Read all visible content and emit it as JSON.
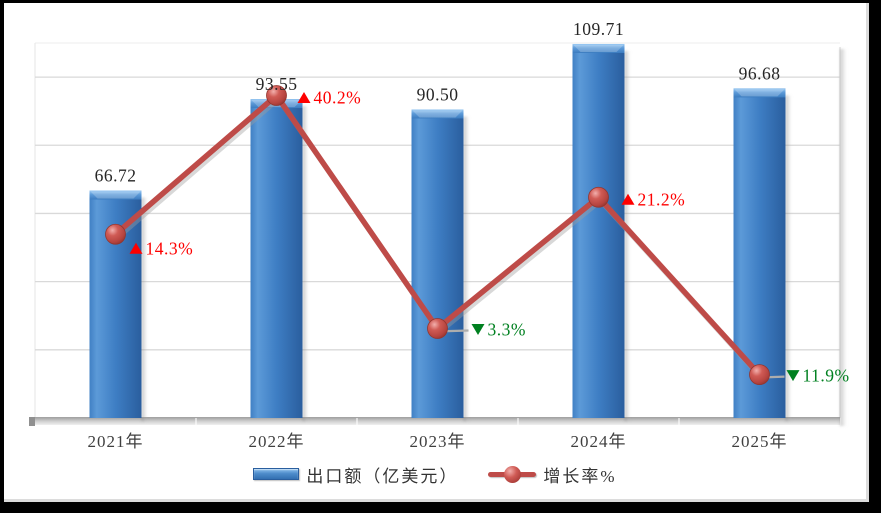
{
  "legend": {
    "bar_label": "出口额（亿美元）",
    "line_label": "增长率%"
  },
  "chart_data": {
    "type": "combo",
    "categories": [
      "2021年",
      "2022年",
      "2023年",
      "2024年",
      "2025年"
    ],
    "series": [
      {
        "name": "出口额（亿美元）",
        "type": "bar",
        "axis": "primary",
        "values": [
          66.72,
          93.55,
          90.5,
          109.71,
          96.68
        ],
        "labels": [
          "66.72",
          "93.55",
          "90.50",
          "109.71",
          "96.68"
        ],
        "color": "#3B7AC2"
      },
      {
        "name": "增长率%",
        "type": "line",
        "axis": "secondary",
        "values": [
          14.3,
          40.2,
          -3.3,
          21.2,
          -11.9
        ],
        "color": "#BE4B48"
      }
    ],
    "rate_labels": [
      {
        "text": "14.3%",
        "direction": "up"
      },
      {
        "text": "40.2%",
        "direction": "up"
      },
      {
        "text": "3.3%",
        "direction": "down"
      },
      {
        "text": "21.2%",
        "direction": "up"
      },
      {
        "text": "11.9%",
        "direction": "down"
      }
    ],
    "axes": {
      "primary": {
        "min": 0,
        "max": 110,
        "grid_interval": 20,
        "labels_visible": false
      },
      "secondary": {
        "min": -20,
        "max": 50,
        "labels_visible": false
      }
    },
    "grid": true,
    "legend_position": "bottom",
    "colors": {
      "bar": "#3B7AC2",
      "bar_dark": "#2A5E9E",
      "line": "#BE4B48",
      "up": "#FE0000",
      "down": "#008020",
      "value_label": "#262626",
      "axis_label": "#3F3F3F",
      "gridline": "#D9D9D9",
      "leader": "#ADADAD"
    }
  }
}
